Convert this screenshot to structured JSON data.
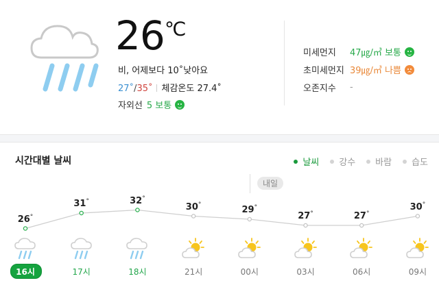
{
  "current": {
    "temp": "26",
    "unit": "℃",
    "description": "비, 어제보다 10˚낮아요",
    "min": "27˚",
    "slash": "/",
    "max": "35˚",
    "feels_label": "체감온도",
    "feels_value": "27.4˚",
    "uv_label": "자외선",
    "uv_value": "5 보통",
    "icon": "rain-cloud-icon"
  },
  "air_quality": [
    {
      "label": "미세먼지",
      "value": "47㎍/㎥",
      "status": "보통",
      "level": "good",
      "color": "#29a94b"
    },
    {
      "label": "초미세먼지",
      "value": "39㎍/㎥",
      "status": "나쁨",
      "level": "bad",
      "color": "#e9893a"
    },
    {
      "label": "오존지수",
      "value": "-",
      "status": "",
      "level": "none",
      "color": "#999999"
    }
  ],
  "hourly": {
    "title": "시간대별 날씨",
    "legend": [
      "날씨",
      "강수",
      "바람",
      "습도"
    ],
    "legend_active": "날씨",
    "next_day_label": "내일",
    "degree_symbol": "°",
    "items": [
      {
        "time": "16시",
        "temp": 26,
        "icon": "rain-cloud-icon",
        "highlight": "now"
      },
      {
        "time": "17시",
        "temp": 31,
        "icon": "rain-cloud-icon",
        "highlight": "rain"
      },
      {
        "time": "18시",
        "temp": 32,
        "icon": "rain-cloud-icon",
        "highlight": "rain"
      },
      {
        "time": "21시",
        "temp": 30,
        "icon": "partly-cloudy-sun-icon",
        "highlight": "none"
      },
      {
        "time": "00시",
        "temp": 29,
        "icon": "partly-cloudy-sun-icon",
        "highlight": "none"
      },
      {
        "time": "03시",
        "temp": 27,
        "icon": "partly-cloudy-sun-icon",
        "highlight": "none"
      },
      {
        "time": "06시",
        "temp": 27,
        "icon": "partly-cloudy-sun-icon",
        "highlight": "none"
      },
      {
        "time": "09시",
        "temp": 30,
        "icon": "partly-cloudy-sun-icon",
        "highlight": "none"
      }
    ]
  },
  "colors": {
    "accent_green": "#15a33f",
    "rain_blue": "#7cc6ef",
    "sun_yellow": "#f7c51e",
    "line_gray": "#cfcfcf"
  }
}
